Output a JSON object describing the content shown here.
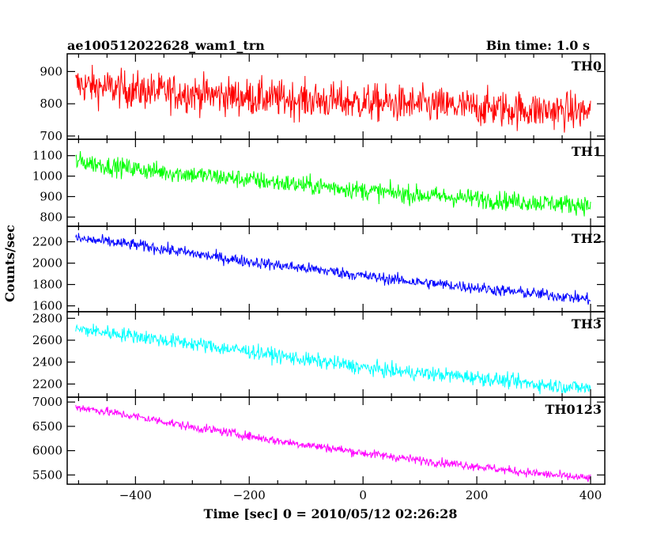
{
  "chart_data": {
    "type": "line",
    "title": "ae100512022628_wam1_trn",
    "subtitle": "Bin time: 1.0 s",
    "xlabel": "Time [sec] 0 = 2010/05/12 02:26:28",
    "ylabel": "Counts/sec",
    "xlim": [
      -520,
      425
    ],
    "xticks": [
      -400,
      -200,
      0,
      200,
      400
    ],
    "grid": false,
    "panels": [
      {
        "name": "TH0",
        "color": "#ff0000",
        "ylim": [
          690,
          955
        ],
        "yticks": [
          700,
          800,
          900
        ],
        "x": [
          -505,
          -450,
          -400,
          -350,
          -300,
          -250,
          -200,
          -150,
          -100,
          -50,
          0,
          50,
          100,
          150,
          200,
          250,
          300,
          350,
          400
        ],
        "values": [
          860,
          850,
          842,
          836,
          832,
          826,
          820,
          816,
          812,
          808,
          804,
          800,
          796,
          792,
          788,
          784,
          780,
          778,
          775
        ],
        "noise": 48
      },
      {
        "name": "TH1",
        "color": "#00ff00",
        "ylim": [
          755,
          1180
        ],
        "yticks": [
          800,
          900,
          1000,
          1100
        ],
        "x": [
          -505,
          -450,
          -400,
          -350,
          -300,
          -250,
          -200,
          -150,
          -100,
          -50,
          0,
          50,
          100,
          150,
          200,
          250,
          300,
          350,
          400
        ],
        "values": [
          1075,
          1050,
          1035,
          1020,
          1008,
          995,
          982,
          968,
          955,
          945,
          930,
          918,
          908,
          898,
          890,
          880,
          872,
          865,
          858
        ],
        "noise": 38
      },
      {
        "name": "TH2",
        "color": "#0000ff",
        "ylim": [
          1545,
          2345
        ],
        "yticks": [
          1600,
          1800,
          2000,
          2200
        ],
        "x": [
          -505,
          -450,
          -400,
          -350,
          -300,
          -250,
          -200,
          -150,
          -100,
          -50,
          0,
          50,
          100,
          150,
          200,
          250,
          300,
          350,
          400
        ],
        "values": [
          2230,
          2200,
          2170,
          2130,
          2090,
          2050,
          2015,
          1980,
          1950,
          1920,
          1880,
          1850,
          1820,
          1795,
          1770,
          1740,
          1715,
          1690,
          1660
        ],
        "noise": 45
      },
      {
        "name": "TH3",
        "color": "#00ffff",
        "ylim": [
          2080,
          2860
        ],
        "yticks": [
          2200,
          2400,
          2600,
          2800
        ],
        "x": [
          -505,
          -450,
          -400,
          -350,
          -300,
          -250,
          -200,
          -150,
          -100,
          -50,
          0,
          50,
          100,
          150,
          200,
          250,
          300,
          350,
          400
        ],
        "values": [
          2700,
          2670,
          2640,
          2600,
          2570,
          2530,
          2500,
          2460,
          2420,
          2390,
          2350,
          2320,
          2300,
          2280,
          2260,
          2230,
          2200,
          2180,
          2160
        ],
        "noise": 55
      },
      {
        "name": "TH0123",
        "color": "#ff00ff",
        "ylim": [
          5310,
          7100
        ],
        "yticks": [
          5500,
          6000,
          6500,
          7000
        ],
        "x": [
          -505,
          -450,
          -400,
          -350,
          -300,
          -250,
          -200,
          -150,
          -100,
          -50,
          0,
          50,
          100,
          150,
          200,
          250,
          300,
          350,
          400
        ],
        "values": [
          6900,
          6800,
          6700,
          6600,
          6480,
          6400,
          6300,
          6200,
          6120,
          6040,
          5950,
          5880,
          5800,
          5740,
          5680,
          5600,
          5540,
          5480,
          5430
        ],
        "noise": 75
      }
    ]
  }
}
